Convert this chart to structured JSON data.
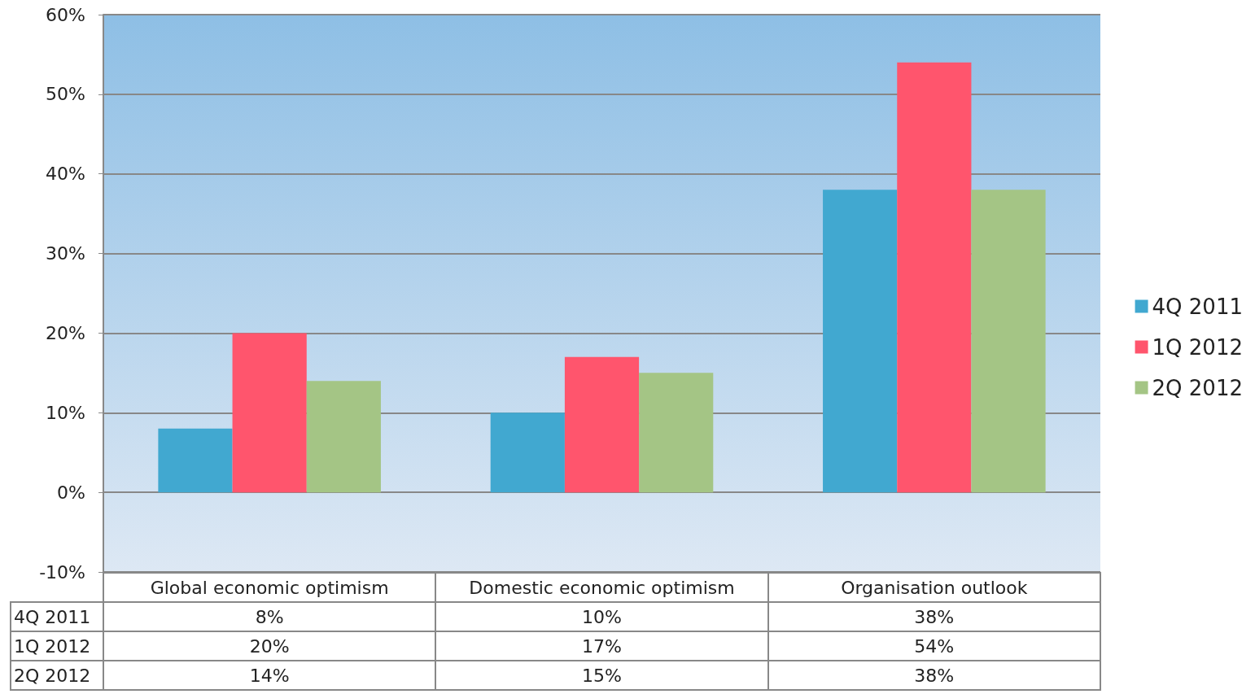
{
  "chart_data": {
    "type": "bar",
    "categories": [
      "Global economic optimism",
      "Domestic economic optimism",
      "Organisation outlook"
    ],
    "series": [
      {
        "name": "4Q 2011",
        "color": "#41a8d0",
        "values": [
          8,
          10,
          38
        ],
        "value_labels": [
          "8%",
          "10%",
          "38%"
        ]
      },
      {
        "name": "1Q 2012",
        "color": "#ff556d",
        "values": [
          20,
          17,
          54
        ],
        "value_labels": [
          "20%",
          "17%",
          "54%"
        ]
      },
      {
        "name": "2Q 2012",
        "color": "#a4c585",
        "values": [
          14,
          15,
          38
        ],
        "value_labels": [
          "14%",
          "15%",
          "38%"
        ]
      }
    ],
    "ylim": [
      -10,
      60
    ],
    "yticks": [
      {
        "value": -10,
        "label": "-10%"
      },
      {
        "value": 0,
        "label": "0%"
      },
      {
        "value": 10,
        "label": "10%"
      },
      {
        "value": 20,
        "label": "20%"
      },
      {
        "value": 30,
        "label": "30%"
      },
      {
        "value": 40,
        "label": "40%"
      },
      {
        "value": 50,
        "label": "50%"
      },
      {
        "value": 60,
        "label": "60%"
      }
    ],
    "grid": "y",
    "legend": "right"
  }
}
